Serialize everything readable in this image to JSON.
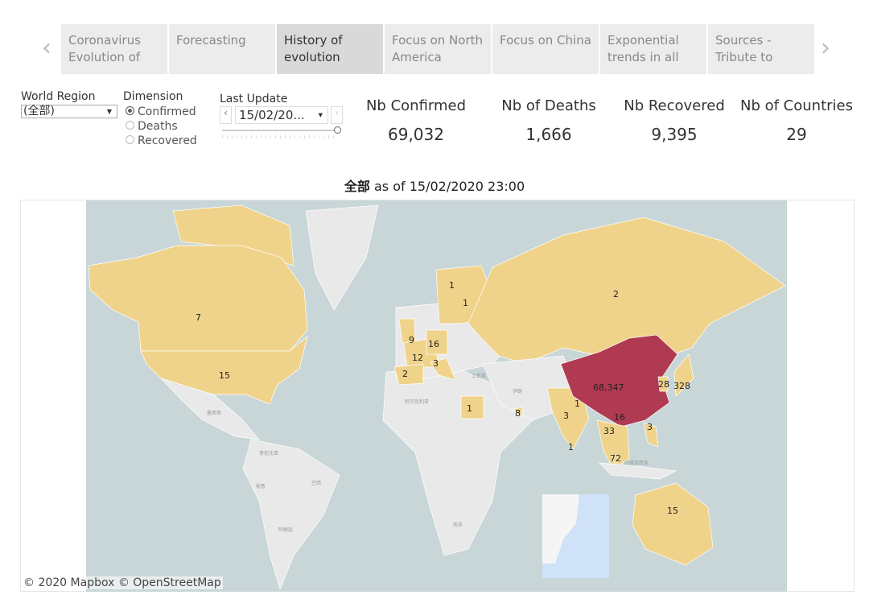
{
  "tabs": [
    {
      "label": "Coronavirus Evolution of",
      "active": false
    },
    {
      "label": "Forecasting",
      "active": false
    },
    {
      "label": "History of evolution",
      "active": true
    },
    {
      "label": "Focus on North America",
      "active": false
    },
    {
      "label": "Focus on China",
      "active": false
    },
    {
      "label": "Exponential trends in all",
      "active": false
    },
    {
      "label": "Sources - Tribute to",
      "active": false
    }
  ],
  "filters": {
    "world_region": {
      "label": "World Region",
      "value": "(全部)"
    },
    "dimension": {
      "label": "Dimension",
      "options": [
        "Confirmed",
        "Deaths",
        "Recovered"
      ],
      "selected": "Confirmed"
    },
    "last_update": {
      "label": "Last Update",
      "value": "15/02/20...",
      "slider_position": 1.0
    }
  },
  "kpis": [
    {
      "label": "Nb Confirmed",
      "value": "69,032"
    },
    {
      "label": "Nb of Deaths",
      "value": "1,666"
    },
    {
      "label": "Nb Recovered",
      "value": "9,395"
    },
    {
      "label": "Nb of Countries",
      "value": "29"
    }
  ],
  "map": {
    "title_bold": "全部",
    "title_rest": " as of 15/02/2020 23:00",
    "attribution": "© 2020 Mapbox © OpenStreetMap",
    "colors": {
      "water": "#c8d6d8",
      "land": "#e9e9e9",
      "low": "#f0d38a",
      "high": "#b03a52"
    },
    "country_labels": [
      "7",
      "15",
      "1",
      "1",
      "9",
      "16",
      "12",
      "3",
      "2",
      "1",
      "2",
      "8",
      "3",
      "1",
      "1",
      "68,347",
      "16",
      "33",
      "3",
      "28",
      "328",
      "72",
      "15"
    ],
    "base_labels": [
      "墨西哥",
      "哥伦比亚",
      "秘鲁",
      "巴西",
      "阿根廷",
      "阿尔及利亚",
      "土耳其",
      "伊朗",
      "南非",
      "印度尼西亚"
    ]
  }
}
